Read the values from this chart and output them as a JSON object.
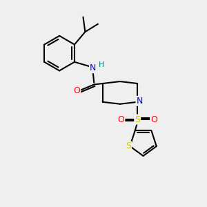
{
  "background_color": "#efefef",
  "atom_colors": {
    "N": "#0000ff",
    "O": "#ff0000",
    "S": "#cccc00",
    "H": "#008080"
  },
  "bond_lw": 1.5,
  "font_size": 9,
  "fig_size": [
    3.0,
    3.0
  ],
  "dpi": 100
}
